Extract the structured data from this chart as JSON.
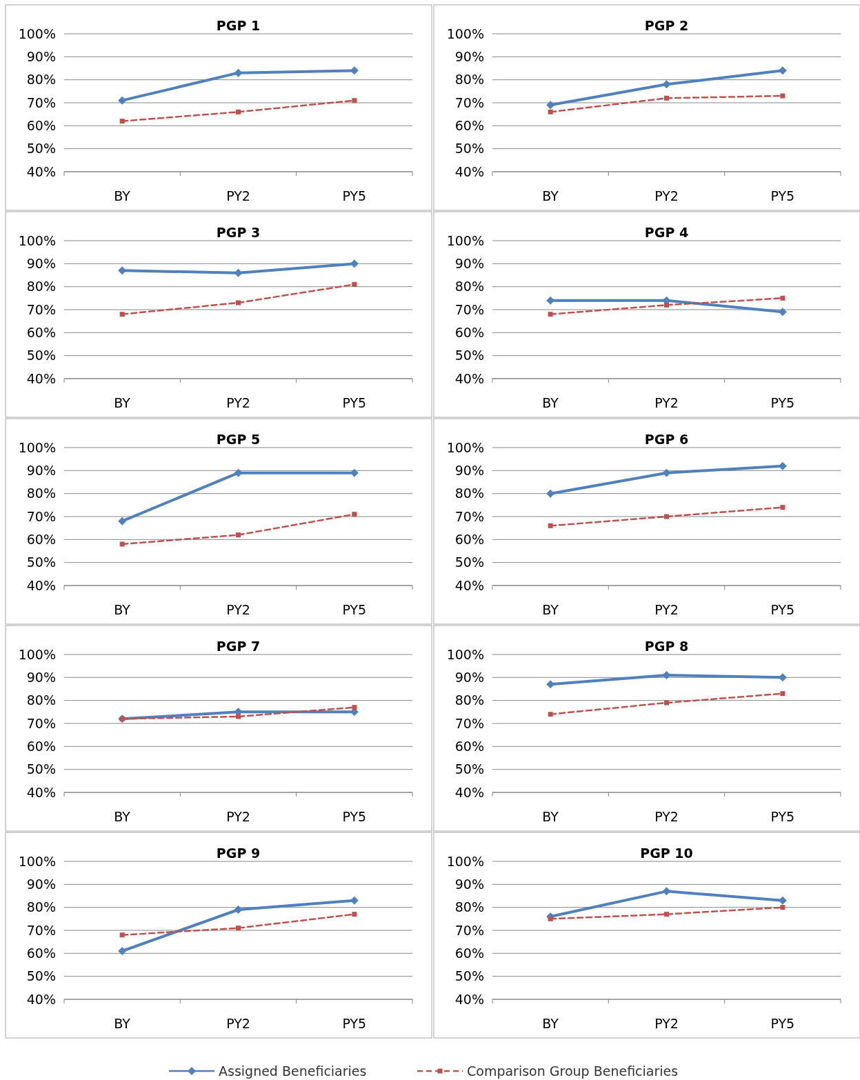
{
  "chart_data": [
    {
      "type": "line",
      "title": "PGP 1",
      "categories": [
        "BY",
        "PY2",
        "PY5"
      ],
      "ylim": [
        40,
        100
      ],
      "yticks": [
        {
          "value": 40,
          "label": "40%"
        },
        {
          "value": 50,
          "label": "50%"
        },
        {
          "value": 60,
          "label": "60%"
        },
        {
          "value": 70,
          "label": "70%"
        },
        {
          "value": 80,
          "label": "80%"
        },
        {
          "value": 90,
          "label": "90%"
        },
        {
          "value": 100,
          "label": "100%"
        }
      ],
      "grid": "y",
      "legend": "bottom",
      "series": [
        {
          "name": "Assigned Beneficiaries",
          "color": "#4f81bd",
          "values": [
            71,
            83,
            84
          ],
          "marker": "diamond",
          "line_style": "solid"
        },
        {
          "name": "Comparison Group Beneficiaries",
          "color": "#c0504d",
          "values": [
            62,
            66,
            71
          ],
          "marker": "square",
          "line_style": "dashed"
        }
      ]
    },
    {
      "type": "line",
      "title": "PGP 2",
      "categories": [
        "BY",
        "PY2",
        "PY5"
      ],
      "ylim": [
        40,
        100
      ],
      "yticks": [
        {
          "value": 40,
          "label": "40%"
        },
        {
          "value": 50,
          "label": "50%"
        },
        {
          "value": 60,
          "label": "60%"
        },
        {
          "value": 70,
          "label": "70%"
        },
        {
          "value": 80,
          "label": "80%"
        },
        {
          "value": 90,
          "label": "90%"
        },
        {
          "value": 100,
          "label": "100%"
        }
      ],
      "grid": "y",
      "series": [
        {
          "color": "#4f81bd",
          "values": [
            69,
            78,
            84
          ],
          "marker": "diamond",
          "line_style": "solid"
        },
        {
          "color": "#c0504d",
          "values": [
            66,
            72,
            73
          ],
          "marker": "square",
          "line_style": "dashed"
        }
      ]
    },
    {
      "type": "line",
      "title": "PGP 3",
      "categories": [
        "BY",
        "PY2",
        "PY5"
      ],
      "ylim": [
        40,
        100
      ],
      "yticks": [
        {
          "value": 40,
          "label": "40%"
        },
        {
          "value": 50,
          "label": "50%"
        },
        {
          "value": 60,
          "label": "60%"
        },
        {
          "value": 70,
          "label": "70%"
        },
        {
          "value": 80,
          "label": "80%"
        },
        {
          "value": 90,
          "label": "90%"
        },
        {
          "value": 100,
          "label": "100%"
        }
      ],
      "grid": "y",
      "series": [
        {
          "color": "#4f81bd",
          "values": [
            87,
            86,
            90
          ],
          "marker": "diamond",
          "line_style": "solid"
        },
        {
          "color": "#c0504d",
          "values": [
            68,
            73,
            81
          ],
          "marker": "square",
          "line_style": "dashed"
        }
      ]
    },
    {
      "type": "line",
      "title": "PGP 4",
      "categories": [
        "BY",
        "PY2",
        "PY5"
      ],
      "ylim": [
        40,
        100
      ],
      "yticks": [
        {
          "value": 40,
          "label": "40%"
        },
        {
          "value": 50,
          "label": "50%"
        },
        {
          "value": 60,
          "label": "60%"
        },
        {
          "value": 70,
          "label": "70%"
        },
        {
          "value": 80,
          "label": "80%"
        },
        {
          "value": 90,
          "label": "90%"
        },
        {
          "value": 100,
          "label": "100%"
        }
      ],
      "grid": "y",
      "series": [
        {
          "color": "#4f81bd",
          "values": [
            74,
            74,
            69
          ],
          "marker": "diamond",
          "line_style": "solid"
        },
        {
          "color": "#c0504d",
          "values": [
            68,
            72,
            75
          ],
          "marker": "square",
          "line_style": "dashed"
        }
      ]
    },
    {
      "type": "line",
      "title": "PGP 5",
      "categories": [
        "BY",
        "PY2",
        "PY5"
      ],
      "ylim": [
        40,
        100
      ],
      "yticks": [
        {
          "value": 40,
          "label": "40%"
        },
        {
          "value": 50,
          "label": "50%"
        },
        {
          "value": 60,
          "label": "60%"
        },
        {
          "value": 70,
          "label": "70%"
        },
        {
          "value": 80,
          "label": "80%"
        },
        {
          "value": 90,
          "label": "90%"
        },
        {
          "value": 100,
          "label": "100%"
        }
      ],
      "grid": "y",
      "series": [
        {
          "color": "#4f81bd",
          "values": [
            68,
            89,
            89
          ],
          "marker": "diamond",
          "line_style": "solid"
        },
        {
          "color": "#c0504d",
          "values": [
            58,
            62,
            71
          ],
          "marker": "square",
          "line_style": "dashed"
        }
      ]
    },
    {
      "type": "line",
      "title": "PGP 6",
      "categories": [
        "BY",
        "PY2",
        "PY5"
      ],
      "ylim": [
        40,
        100
      ],
      "yticks": [
        {
          "value": 40,
          "label": "40%"
        },
        {
          "value": 50,
          "label": "50%"
        },
        {
          "value": 60,
          "label": "60%"
        },
        {
          "value": 70,
          "label": "70%"
        },
        {
          "value": 80,
          "label": "80%"
        },
        {
          "value": 90,
          "label": "90%"
        },
        {
          "value": 100,
          "label": "100%"
        }
      ],
      "grid": "y",
      "series": [
        {
          "color": "#4f81bd",
          "values": [
            80,
            89,
            92
          ],
          "marker": "diamond",
          "line_style": "solid"
        },
        {
          "color": "#c0504d",
          "values": [
            66,
            70,
            74
          ],
          "marker": "square",
          "line_style": "dashed"
        }
      ]
    },
    {
      "type": "line",
      "title": "PGP 7",
      "categories": [
        "BY",
        "PY2",
        "PY5"
      ],
      "ylim": [
        40,
        100
      ],
      "yticks": [
        {
          "value": 40,
          "label": "40%"
        },
        {
          "value": 50,
          "label": "50%"
        },
        {
          "value": 60,
          "label": "60%"
        },
        {
          "value": 70,
          "label": "70%"
        },
        {
          "value": 80,
          "label": "80%"
        },
        {
          "value": 90,
          "label": "90%"
        },
        {
          "value": 100,
          "label": "100%"
        }
      ],
      "grid": "y",
      "series": [
        {
          "color": "#4f81bd",
          "values": [
            72,
            75,
            75
          ],
          "marker": "diamond",
          "line_style": "solid"
        },
        {
          "color": "#c0504d",
          "values": [
            72,
            73,
            77
          ],
          "marker": "square",
          "line_style": "dashed"
        }
      ]
    },
    {
      "type": "line",
      "title": "PGP 8",
      "categories": [
        "BY",
        "PY2",
        "PY5"
      ],
      "ylim": [
        40,
        100
      ],
      "yticks": [
        {
          "value": 40,
          "label": "40%"
        },
        {
          "value": 50,
          "label": "50%"
        },
        {
          "value": 60,
          "label": "60%"
        },
        {
          "value": 70,
          "label": "70%"
        },
        {
          "value": 80,
          "label": "80%"
        },
        {
          "value": 90,
          "label": "90%"
        },
        {
          "value": 100,
          "label": "100%"
        }
      ],
      "grid": "y",
      "series": [
        {
          "color": "#4f81bd",
          "values": [
            87,
            91,
            90
          ],
          "marker": "diamond",
          "line_style": "solid"
        },
        {
          "color": "#c0504d",
          "values": [
            74,
            79,
            83
          ],
          "marker": "square",
          "line_style": "dashed"
        }
      ]
    },
    {
      "type": "line",
      "title": "PGP 9",
      "categories": [
        "BY",
        "PY2",
        "PY5"
      ],
      "ylim": [
        40,
        100
      ],
      "yticks": [
        {
          "value": 40,
          "label": "40%"
        },
        {
          "value": 50,
          "label": "50%"
        },
        {
          "value": 60,
          "label": "60%"
        },
        {
          "value": 70,
          "label": "70%"
        },
        {
          "value": 80,
          "label": "80%"
        },
        {
          "value": 90,
          "label": "90%"
        },
        {
          "value": 100,
          "label": "100%"
        }
      ],
      "grid": "y",
      "series": [
        {
          "color": "#4f81bd",
          "values": [
            61,
            79,
            83
          ],
          "marker": "diamond",
          "line_style": "solid"
        },
        {
          "color": "#c0504d",
          "values": [
            68,
            71,
            77
          ],
          "marker": "square",
          "line_style": "dashed"
        }
      ]
    },
    {
      "type": "line",
      "title": "PGP 10",
      "categories": [
        "BY",
        "PY2",
        "PY5"
      ],
      "ylim": [
        40,
        100
      ],
      "yticks": [
        {
          "value": 40,
          "label": "40%"
        },
        {
          "value": 50,
          "label": "50%"
        },
        {
          "value": 60,
          "label": "60%"
        },
        {
          "value": 70,
          "label": "70%"
        },
        {
          "value": 80,
          "label": "80%"
        },
        {
          "value": 90,
          "label": "90%"
        },
        {
          "value": 100,
          "label": "100%"
        }
      ],
      "grid": "y",
      "series": [
        {
          "color": "#4f81bd",
          "values": [
            76,
            87,
            83
          ],
          "marker": "diamond",
          "line_style": "solid"
        },
        {
          "color": "#c0504d",
          "values": [
            75,
            77,
            80
          ],
          "marker": "square",
          "line_style": "dashed"
        }
      ]
    }
  ]
}
